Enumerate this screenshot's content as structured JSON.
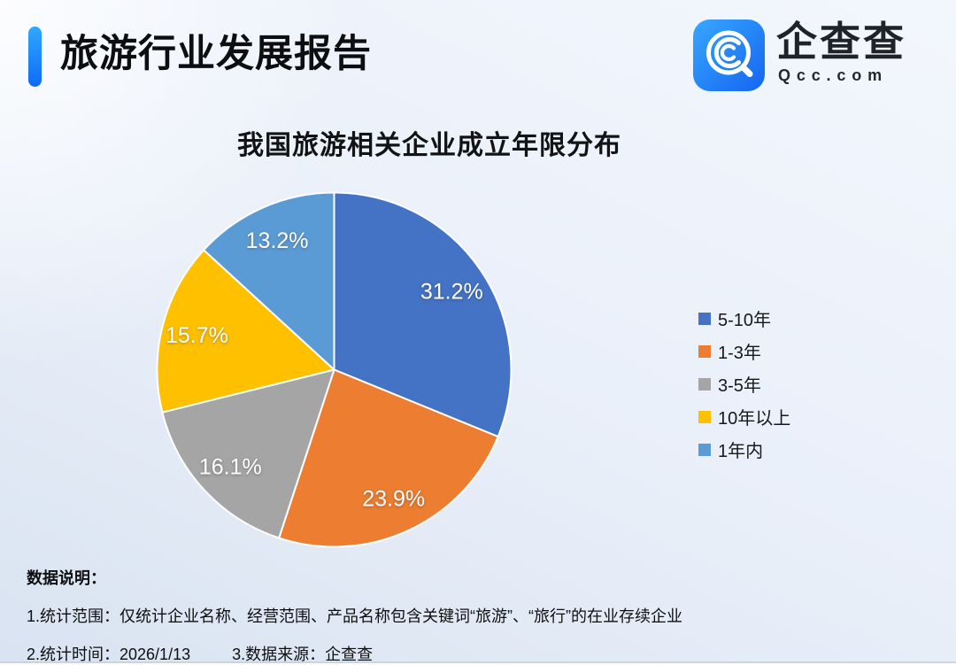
{
  "header": {
    "title": "旅游行业发展报告"
  },
  "logo": {
    "brand": "企查查",
    "domain": "Qcc.com"
  },
  "colors": {
    "accent_gradient_top": "#2fa8ff",
    "accent_gradient_bottom": "#0f6bf5",
    "logo_gradient_top": "#38a7ff",
    "logo_gradient_bottom": "#1465f0",
    "pie_stroke": "#ffffff",
    "background_tint": "#e9eff9"
  },
  "chart_data": {
    "type": "pie",
    "title": "我国旅游相关企业成立年限分布",
    "unit": "%",
    "start_angle_deg": 0,
    "direction": "clockwise",
    "legend_position": "right",
    "series": [
      {
        "label": "5-10年",
        "value": 31.2,
        "color": "#4472C4"
      },
      {
        "label": "1-3年",
        "value": 23.9,
        "color": "#ED7D31"
      },
      {
        "label": "3-5年",
        "value": 16.1,
        "color": "#A5A5A5"
      },
      {
        "label": "10年以上",
        "value": 15.7,
        "color": "#FFC000"
      },
      {
        "label": "1年内",
        "value": 13.2,
        "color": "#5B9BD5"
      }
    ]
  },
  "footnotes": {
    "heading": "数据说明：",
    "line1": "1.统计范围：仅统计企业名称、经营范围、产品名称包含关键词“旅游”、“旅行”的在业存续企业",
    "line2_part1": "2.统计时间：2026/1/13",
    "line2_part2": "3.数据来源：企查查"
  }
}
